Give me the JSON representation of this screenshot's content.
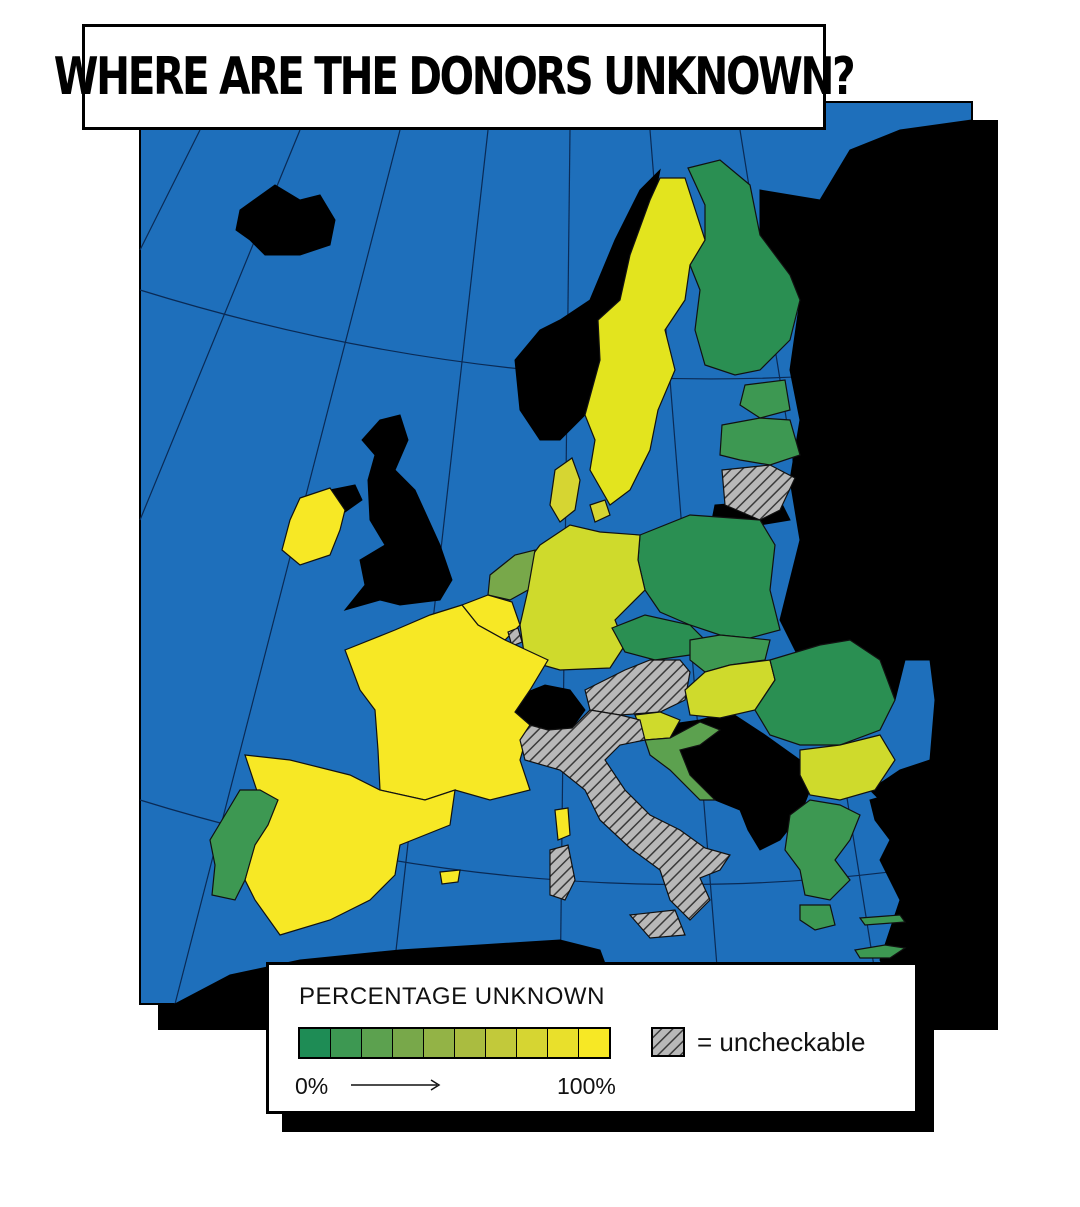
{
  "title": "WHERE ARE THE DONORS UNKNOWN?",
  "legend": {
    "title": "PERCENTAGE UNKNOWN",
    "min_label": "0%",
    "max_label": "100%",
    "uncheckable_label": "= uncheckable",
    "scale_colors": [
      "#1e8c55",
      "#3d9852",
      "#5ca14f",
      "#78a84a",
      "#93b346",
      "#aabc40",
      "#c2c93a",
      "#d6d532",
      "#e9e02b",
      "#f7e825"
    ]
  },
  "colors": {
    "sea": "#1e6fbb",
    "non_member": "#000000",
    "uncheckable": "#b8b8b8",
    "border": "#111111"
  },
  "countries": [
    {
      "name": "Portugal",
      "level": 0.1
    },
    {
      "name": "Spain",
      "level": 1.0
    },
    {
      "name": "France",
      "level": 1.0
    },
    {
      "name": "Ireland",
      "level": 1.0
    },
    {
      "name": "Belgium",
      "level": 1.0
    },
    {
      "name": "Luxembourg",
      "level": null
    },
    {
      "name": "Netherlands",
      "level": 0.45
    },
    {
      "name": "Germany",
      "level": 0.75
    },
    {
      "name": "Denmark",
      "level": 0.9
    },
    {
      "name": "Sweden",
      "level": 0.95
    },
    {
      "name": "Finland",
      "level": 0.1
    },
    {
      "name": "Estonia",
      "level": 0.15
    },
    {
      "name": "Latvia",
      "level": 0.15
    },
    {
      "name": "Lithuania",
      "level": null
    },
    {
      "name": "Poland",
      "level": 0.1
    },
    {
      "name": "Czechia",
      "level": 0.1
    },
    {
      "name": "Slovakia",
      "level": 0.15
    },
    {
      "name": "Austria",
      "level": null
    },
    {
      "name": "Hungary",
      "level": 0.75
    },
    {
      "name": "Slovenia",
      "level": 0.8
    },
    {
      "name": "Croatia",
      "level": 0.2
    },
    {
      "name": "Romania",
      "level": 0.1
    },
    {
      "name": "Bulgaria",
      "level": 0.75
    },
    {
      "name": "Greece",
      "level": 0.2
    },
    {
      "name": "Italy",
      "level": null
    },
    {
      "name": "Malta",
      "level": 1.0
    },
    {
      "name": "Cyprus",
      "level": 0.2
    }
  ]
}
